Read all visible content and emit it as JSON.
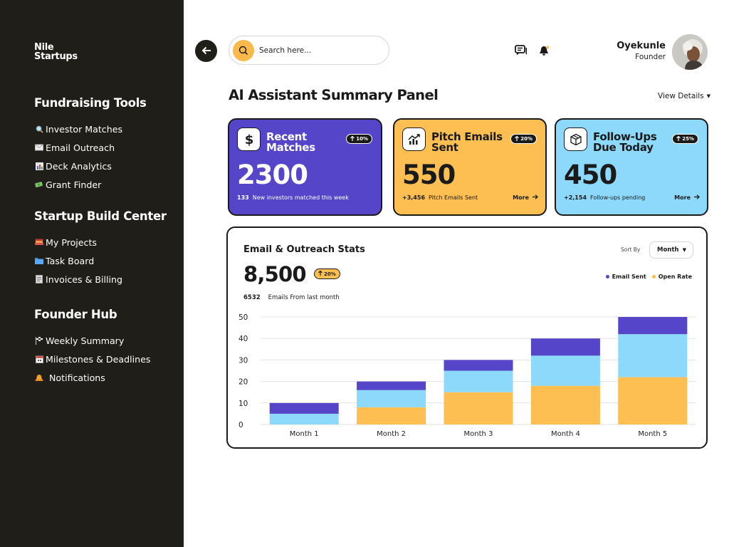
{
  "app": {
    "logo_line1": "Nile",
    "logo_line2": "Startups"
  },
  "sidebar": {
    "sections": [
      {
        "heading": "Fundraising Tools",
        "items": [
          {
            "label": "Investor Matches",
            "icon": "magnifier-icon"
          },
          {
            "label": "Email Outreach",
            "icon": "envelope-icon"
          },
          {
            "label": "Deck Analytics",
            "icon": "bar-chart-icon"
          },
          {
            "label": "Grant Finder",
            "icon": "money-icon"
          }
        ]
      },
      {
        "heading": "Startup Build Center",
        "items": [
          {
            "label": "My Projects",
            "icon": "books-icon"
          },
          {
            "label": "Task Board",
            "icon": "folder-icon"
          },
          {
            "label": "Invoices & Billing",
            "icon": "receipt-icon"
          }
        ]
      },
      {
        "heading": "Founder Hub",
        "items": [
          {
            "label": "Weekly Summary",
            "icon": "flag-icon"
          },
          {
            "label": "Milestones & Deadlines",
            "icon": "calendar-icon"
          },
          {
            "label": "Notifications",
            "icon": "bell-icon"
          }
        ]
      }
    ]
  },
  "header": {
    "search_placeholder": "Search here...",
    "user_name": "Oyekunle",
    "user_role": "Founder"
  },
  "main": {
    "title": "AI Assistant Summary Panel",
    "view_details": "View Details"
  },
  "cards": [
    {
      "title_line1": "Recent",
      "title_line2": "Matches",
      "badge": "10%",
      "value": "2300",
      "foot_num": "133",
      "foot_text": "New investors matched this week",
      "more": "",
      "color": "#5546c9"
    },
    {
      "title_line1": "Pitch Emails",
      "title_line2": "Sent",
      "badge": "20%",
      "value": "550",
      "foot_num": "+3,456",
      "foot_text": "Pitch Emails Sent",
      "more": "More",
      "color": "#fdbf52"
    },
    {
      "title_line1": "Follow-Ups",
      "title_line2": "Due Today",
      "badge": "25%",
      "value": "450",
      "foot_num": "+2,154",
      "foot_text": "Follow-ups pending",
      "more": "More",
      "color": "#8dd9fb"
    }
  ],
  "stats": {
    "title": "Email & Outreach Stats",
    "sort_label": "Sort By",
    "sort_value": "Month",
    "total": "8,500",
    "total_badge": "20%",
    "sub_num": "6532",
    "sub_text": "Emails From last month",
    "legend": [
      {
        "label": "Email Sent",
        "color": "#5546c9"
      },
      {
        "label": "Open Rate",
        "color": "#fdbf52"
      }
    ]
  },
  "chart_data": {
    "type": "bar",
    "stacked": true,
    "categories": [
      "Month 1",
      "Month 2",
      "Month 3",
      "Month 4",
      "Month 5"
    ],
    "series": [
      {
        "name": "",
        "color": "#fdbf52",
        "values": [
          0,
          8,
          15,
          18,
          22
        ]
      },
      {
        "name": "",
        "color": "#8dd9fb",
        "values": [
          5,
          8,
          10,
          14,
          20
        ]
      },
      {
        "name": "",
        "color": "#5546c9",
        "values": [
          5,
          4,
          5,
          8,
          8
        ]
      }
    ],
    "yticks": [
      0,
      10,
      20,
      30,
      40,
      50
    ],
    "ylim": [
      0,
      50
    ],
    "grid": true
  }
}
